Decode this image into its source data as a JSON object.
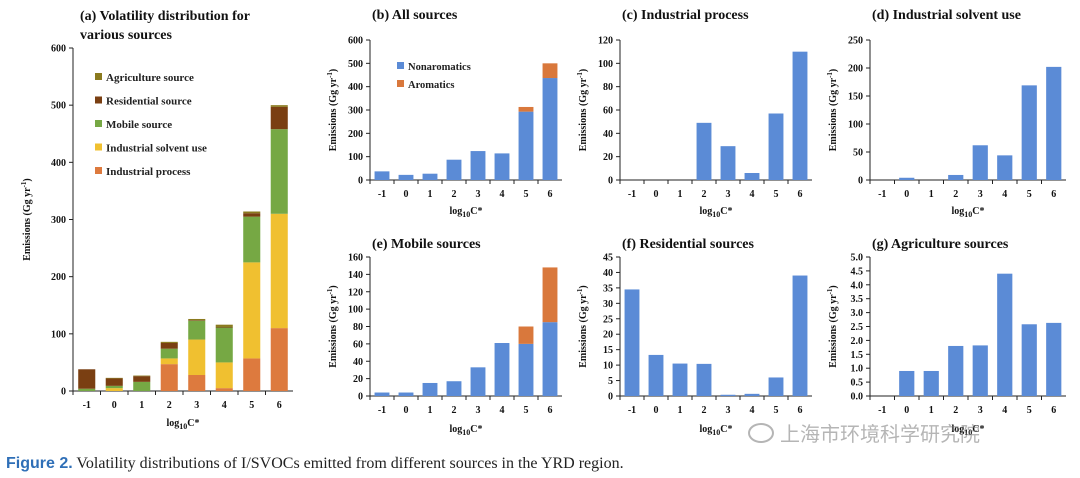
{
  "colors": {
    "nonaromatics": "#5b8bd6",
    "aromatics": "#d9783c",
    "agriculture": "#8a7a1e",
    "residential": "#7a3f12",
    "mobile": "#76a844",
    "industrial_solvent": "#f0c030",
    "industrial_process": "#dd7a3e"
  },
  "caption": {
    "label": "Figure 2.",
    "text": " Volatility distributions of I/SVOCs emitted from different sources in the YRD region."
  },
  "watermark": {
    "text": "上海市环境科学研究院"
  },
  "chart_data": [
    {
      "id": "a",
      "type": "bar",
      "stacked": true,
      "title_lines": [
        "(a) Volatility distribution for",
        "various sources"
      ],
      "xlabel": "log10C*",
      "ylabel": "Emissions (Gg yr-1)",
      "categories": [
        "-1",
        "0",
        "1",
        "2",
        "3",
        "4",
        "5",
        "6"
      ],
      "ylim": [
        0,
        600
      ],
      "yticks": [
        0,
        100,
        200,
        300,
        400,
        500,
        600
      ],
      "series": [
        {
          "name": "Industrial process",
          "color_key": "industrial_process",
          "values": [
            0,
            0,
            0,
            47,
            28,
            5,
            57,
            110
          ]
        },
        {
          "name": "Industrial solvent use",
          "color_key": "industrial_solvent",
          "values": [
            0,
            5,
            0,
            10,
            62,
            45,
            168,
            200
          ]
        },
        {
          "name": "Mobile source",
          "color_key": "mobile",
          "values": [
            4,
            4,
            16,
            17,
            33,
            61,
            80,
            148
          ]
        },
        {
          "name": "Residential source",
          "color_key": "residential",
          "values": [
            34,
            13,
            10,
            10,
            1,
            1,
            6,
            39
          ]
        },
        {
          "name": "Agriculture source",
          "color_key": "agriculture",
          "values": [
            0,
            1,
            1,
            2,
            2,
            4,
            3,
            3
          ]
        }
      ],
      "legend_order": [
        "Agriculture source",
        "Residential source",
        "Mobile source",
        "Industrial solvent use",
        "Industrial process"
      ]
    },
    {
      "id": "b",
      "type": "bar",
      "stacked": true,
      "title": "(b) All sources",
      "xlabel": "log10C*",
      "ylabel": "Emissions (Gg yr-1)",
      "categories": [
        "-1",
        "0",
        "1",
        "2",
        "3",
        "4",
        "5",
        "6"
      ],
      "ylim": [
        0,
        600
      ],
      "yticks": [
        0,
        100,
        200,
        300,
        400,
        500,
        600
      ],
      "series": [
        {
          "name": "Nonaromatics",
          "color_key": "nonaromatics",
          "values": [
            37,
            22,
            27,
            87,
            124,
            114,
            293,
            437
          ]
        },
        {
          "name": "Aromatics",
          "color_key": "aromatics",
          "values": [
            0,
            0,
            0,
            0,
            0,
            0,
            20,
            63
          ]
        }
      ],
      "legend_order": [
        "Nonaromatics",
        "Aromatics"
      ]
    },
    {
      "id": "c",
      "type": "bar",
      "title": "(c) Industrial process",
      "xlabel": "log10C*",
      "ylabel": "Emissions (Gg yr-1)",
      "categories": [
        "-1",
        "0",
        "1",
        "2",
        "3",
        "4",
        "5",
        "6"
      ],
      "ylim": [
        0,
        120
      ],
      "yticks": [
        0,
        20,
        40,
        60,
        80,
        100,
        120
      ],
      "series": [
        {
          "name": "Nonaromatics",
          "color_key": "nonaromatics",
          "values": [
            0,
            0,
            0,
            49,
            29,
            6,
            57,
            110
          ]
        }
      ]
    },
    {
      "id": "d",
      "type": "bar",
      "title": "(d) Industrial solvent use",
      "xlabel": "log10C*",
      "ylabel": "Emissions (Gg yr-1)",
      "categories": [
        "-1",
        "0",
        "1",
        "2",
        "3",
        "4",
        "5",
        "6"
      ],
      "ylim": [
        0,
        250
      ],
      "yticks": [
        0,
        50,
        100,
        150,
        200,
        250
      ],
      "series": [
        {
          "name": "Nonaromatics",
          "color_key": "nonaromatics",
          "values": [
            0,
            4,
            0,
            9,
            62,
            44,
            169,
            202
          ]
        }
      ]
    },
    {
      "id": "e",
      "type": "bar",
      "stacked": true,
      "title": "(e) Mobile sources",
      "xlabel": "log10C*",
      "ylabel": "Emissions (Gg yr-1)",
      "categories": [
        "-1",
        "0",
        "1",
        "2",
        "3",
        "4",
        "5",
        "6"
      ],
      "ylim": [
        0,
        160
      ],
      "yticks": [
        0,
        20,
        40,
        60,
        80,
        100,
        120,
        140,
        160
      ],
      "series": [
        {
          "name": "Nonaromatics",
          "color_key": "nonaromatics",
          "values": [
            4,
            4,
            15,
            17,
            33,
            61,
            60,
            85
          ]
        },
        {
          "name": "Aromatics",
          "color_key": "aromatics",
          "values": [
            0,
            0,
            0,
            0,
            0,
            0,
            20,
            63
          ]
        }
      ]
    },
    {
      "id": "f",
      "type": "bar",
      "title": "(f) Residential sources",
      "xlabel": "log10C*",
      "ylabel": "Emissions (Gg yr-1)",
      "categories": [
        "-1",
        "0",
        "1",
        "2",
        "3",
        "4",
        "5",
        "6"
      ],
      "ylim": [
        0,
        45
      ],
      "yticks": [
        0,
        5,
        10,
        15,
        20,
        25,
        30,
        35,
        40,
        45
      ],
      "series": [
        {
          "name": "Nonaromatics",
          "color_key": "nonaromatics",
          "values": [
            34.5,
            13.3,
            10.5,
            10.4,
            0.4,
            0.7,
            6,
            39
          ]
        }
      ]
    },
    {
      "id": "g",
      "type": "bar",
      "title": "(g) Agriculture sources",
      "xlabel": "log10C*",
      "ylabel": "Emissions (Gg yr-1)",
      "categories": [
        "-1",
        "0",
        "1",
        "2",
        "3",
        "4",
        "5",
        "6"
      ],
      "ylim": [
        0,
        5.0
      ],
      "yticks": [
        0.0,
        0.5,
        1.0,
        1.5,
        2.0,
        2.5,
        3.0,
        3.5,
        4.0,
        4.5,
        5.0
      ],
      "tick_decimals": 1,
      "series": [
        {
          "name": "Nonaromatics",
          "color_key": "nonaromatics",
          "values": [
            0,
            0.9,
            0.9,
            1.8,
            1.82,
            4.4,
            2.58,
            2.63
          ]
        }
      ]
    }
  ]
}
